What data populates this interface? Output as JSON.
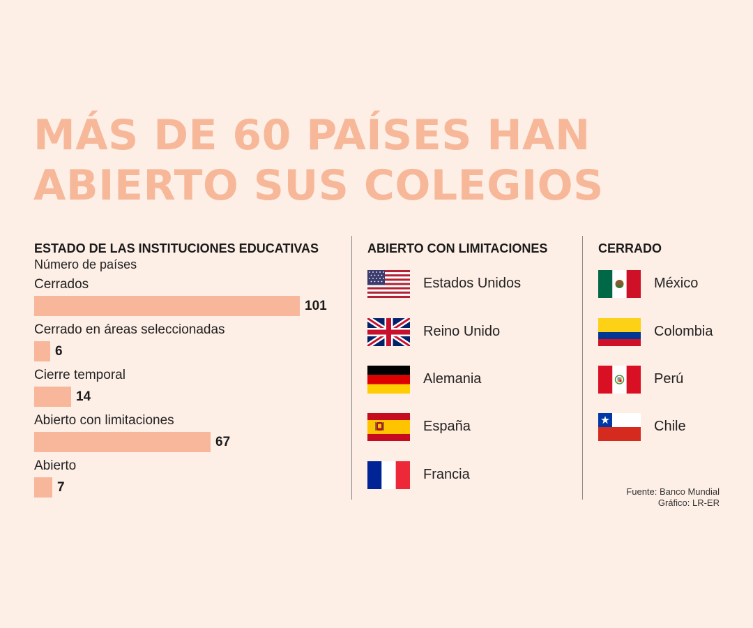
{
  "title": {
    "line1": "MÁS DE 60 PAÍSES HAN",
    "line2": "ABIERTO SUS COLEGIOS"
  },
  "chart_data": {
    "type": "bar",
    "orientation": "horizontal",
    "title": "ESTADO DE LAS INSTITUCIONES EDUCATIVAS",
    "subtitle": "Número de países",
    "categories": [
      "Cerrados",
      "Cerrado en áreas seleccionadas",
      "Cierre temporal",
      "Abierto con limitaciones",
      "Abierto"
    ],
    "values": [
      101,
      6,
      14,
      67,
      7
    ],
    "xlim": [
      0,
      101
    ],
    "grid": false,
    "bar_color": "#f8b79b"
  },
  "open_limited": {
    "heading": "ABIERTO CON LIMITACIONES",
    "countries": [
      {
        "name": "Estados Unidos",
        "flag": "usa-flag-icon"
      },
      {
        "name": "Reino Unido",
        "flag": "uk-flag-icon"
      },
      {
        "name": "Alemania",
        "flag": "germany-flag-icon"
      },
      {
        "name": "España",
        "flag": "spain-flag-icon"
      },
      {
        "name": "Francia",
        "flag": "france-flag-icon"
      }
    ]
  },
  "closed": {
    "heading": "CERRADO",
    "countries": [
      {
        "name": "México",
        "flag": "mexico-flag-icon"
      },
      {
        "name": "Colombia",
        "flag": "colombia-flag-icon"
      },
      {
        "name": "Perú",
        "flag": "peru-flag-icon"
      },
      {
        "name": "Chile",
        "flag": "chile-flag-icon"
      }
    ]
  },
  "source": {
    "line1": "Fuente: Banco Mundial",
    "line2": "Gráfico: LR-ER"
  },
  "colors": {
    "background": "#fdeee6",
    "title": "#f7b89a",
    "bar": "#f8b79b"
  }
}
